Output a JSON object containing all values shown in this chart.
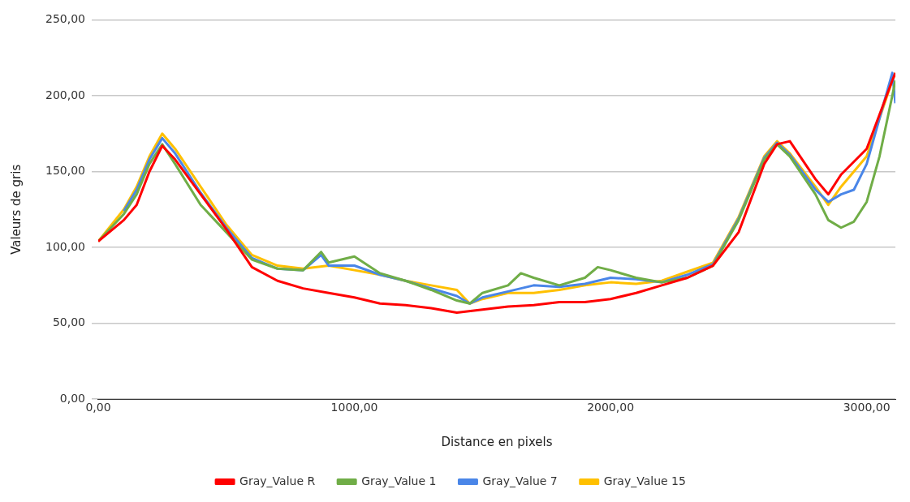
{
  "chart_data": {
    "type": "line",
    "xlabel": "Distance en pixels",
    "ylabel": "Valeurs de gris",
    "xlim": [
      0,
      3112
    ],
    "ylim": [
      0,
      250
    ],
    "xticks": [
      {
        "value": 0,
        "label": "0,00"
      },
      {
        "value": 1000,
        "label": "1000,00"
      },
      {
        "value": 2000,
        "label": "2000,00"
      },
      {
        "value": 3000,
        "label": "3000,00"
      }
    ],
    "yticks": [
      {
        "value": 0,
        "label": "0,00"
      },
      {
        "value": 50,
        "label": "50,00"
      },
      {
        "value": 100,
        "label": "100,00"
      },
      {
        "value": 150,
        "label": "150,00"
      },
      {
        "value": 200,
        "label": "200,00"
      },
      {
        "value": 250,
        "label": "250,00"
      }
    ],
    "grid": "y",
    "legend": "bottom",
    "marker": "none",
    "line_style": "solid",
    "series": [
      {
        "name": "Gray_Value R",
        "color": "#ff0000",
        "x": [
          0,
          100,
          150,
          200,
          250,
          300,
          400,
          500,
          600,
          700,
          800,
          900,
          1000,
          1100,
          1200,
          1300,
          1400,
          1500,
          1600,
          1700,
          1800,
          1900,
          2000,
          2100,
          2200,
          2300,
          2400,
          2500,
          2600,
          2650,
          2700,
          2800,
          2850,
          2900,
          3000,
          3100,
          3112
        ],
        "values": [
          104,
          118,
          128,
          150,
          167,
          158,
          135,
          112,
          87,
          78,
          73,
          70,
          67,
          63,
          62,
          60,
          57,
          59,
          61,
          62,
          64,
          64,
          66,
          70,
          75,
          80,
          88,
          110,
          155,
          168,
          170,
          145,
          135,
          148,
          165,
          210,
          215
        ]
      },
      {
        "name": "Gray_Value 1",
        "color": "#70ad47",
        "x": [
          0,
          100,
          150,
          200,
          250,
          300,
          400,
          500,
          600,
          700,
          800,
          870,
          900,
          1000,
          1100,
          1200,
          1300,
          1400,
          1450,
          1500,
          1600,
          1650,
          1700,
          1800,
          1900,
          1950,
          2000,
          2100,
          2200,
          2300,
          2400,
          2500,
          2600,
          2650,
          2700,
          2800,
          2850,
          2900,
          2950,
          3000,
          3050,
          3100,
          3112
        ],
        "values": [
          104,
          122,
          135,
          155,
          168,
          155,
          128,
          110,
          92,
          86,
          85,
          97,
          90,
          94,
          83,
          78,
          72,
          65,
          63,
          70,
          75,
          83,
          80,
          75,
          80,
          87,
          85,
          80,
          77,
          80,
          88,
          118,
          158,
          168,
          160,
          135,
          118,
          113,
          117,
          130,
          160,
          200,
          210
        ]
      },
      {
        "name": "Gray_Value 7",
        "color": "#4a86e8",
        "x": [
          100,
          150,
          200,
          250,
          300,
          400,
          500,
          600,
          700,
          800,
          870,
          900,
          1000,
          1100,
          1200,
          1300,
          1400,
          1450,
          1500,
          1600,
          1700,
          1800,
          1900,
          2000,
          2100,
          2200,
          2300,
          2400,
          2500,
          2600,
          2650,
          2700,
          2800,
          2850,
          2900,
          2950,
          3000,
          3100,
          3112
        ],
        "values": [
          124,
          138,
          158,
          172,
          162,
          136,
          113,
          93,
          86,
          85,
          95,
          88,
          88,
          82,
          78,
          73,
          68,
          63,
          67,
          71,
          75,
          74,
          76,
          80,
          79,
          77,
          82,
          89,
          119,
          159,
          169,
          161,
          138,
          130,
          135,
          138,
          155,
          215,
          195
        ]
      },
      {
        "name": "Gray_Value 15",
        "color": "#ffc000",
        "x": [
          0,
          100,
          150,
          200,
          250,
          300,
          400,
          500,
          600,
          700,
          800,
          900,
          1000,
          1100,
          1200,
          1300,
          1400,
          1450,
          1500,
          1600,
          1700,
          1800,
          1900,
          2000,
          2100,
          2200,
          2300,
          2400,
          2500,
          2600,
          2650,
          2700,
          2800,
          2850,
          2900,
          3000,
          3100,
          3112
        ],
        "values": [
          104,
          125,
          140,
          160,
          175,
          165,
          140,
          115,
          95,
          88,
          86,
          88,
          85,
          82,
          78,
          75,
          72,
          63,
          66,
          70,
          70,
          72,
          75,
          77,
          76,
          78,
          84,
          90,
          120,
          160,
          170,
          162,
          140,
          128,
          140,
          160,
          210,
          215
        ]
      }
    ]
  }
}
